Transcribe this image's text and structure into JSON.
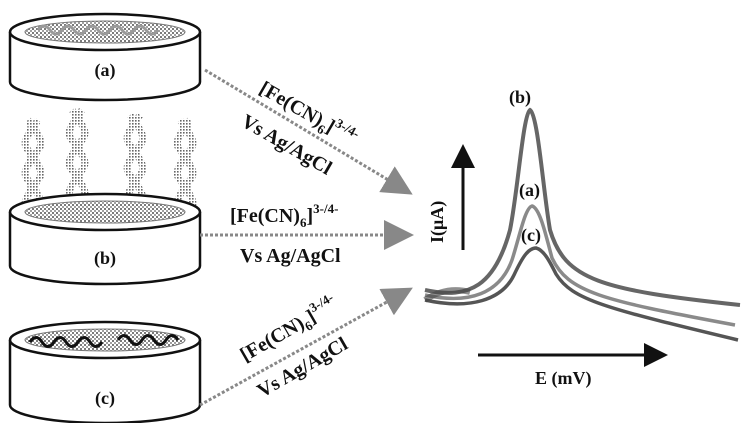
{
  "electrodes": [
    {
      "id": "a",
      "label": "(a)"
    },
    {
      "id": "b",
      "label": "(b)"
    },
    {
      "id": "c",
      "label": "(c)"
    }
  ],
  "arrows": [
    {
      "redox_base": "[Fe(CN)",
      "sub": "6",
      "sup": "]3-/4-",
      "reference": "Vs Ag/AgCl"
    },
    {
      "redox_base": "[Fe(CN)",
      "sub": "6",
      "sup": "]3-/4-",
      "reference": "Vs Ag/AgCl"
    },
    {
      "redox_base": "[Fe(CN)",
      "sub": "6",
      "sup": "]3-/4-",
      "reference": "Vs Ag/AgCl"
    }
  ],
  "plot": {
    "y_axis_label": "I(μA)",
    "x_axis_label": "E (mV)",
    "curve_labels": [
      "(b)",
      "(a)",
      "(c)"
    ]
  },
  "colors": {
    "ink": "#111111",
    "shade": "#8a8a8a",
    "curve": "#555555"
  }
}
